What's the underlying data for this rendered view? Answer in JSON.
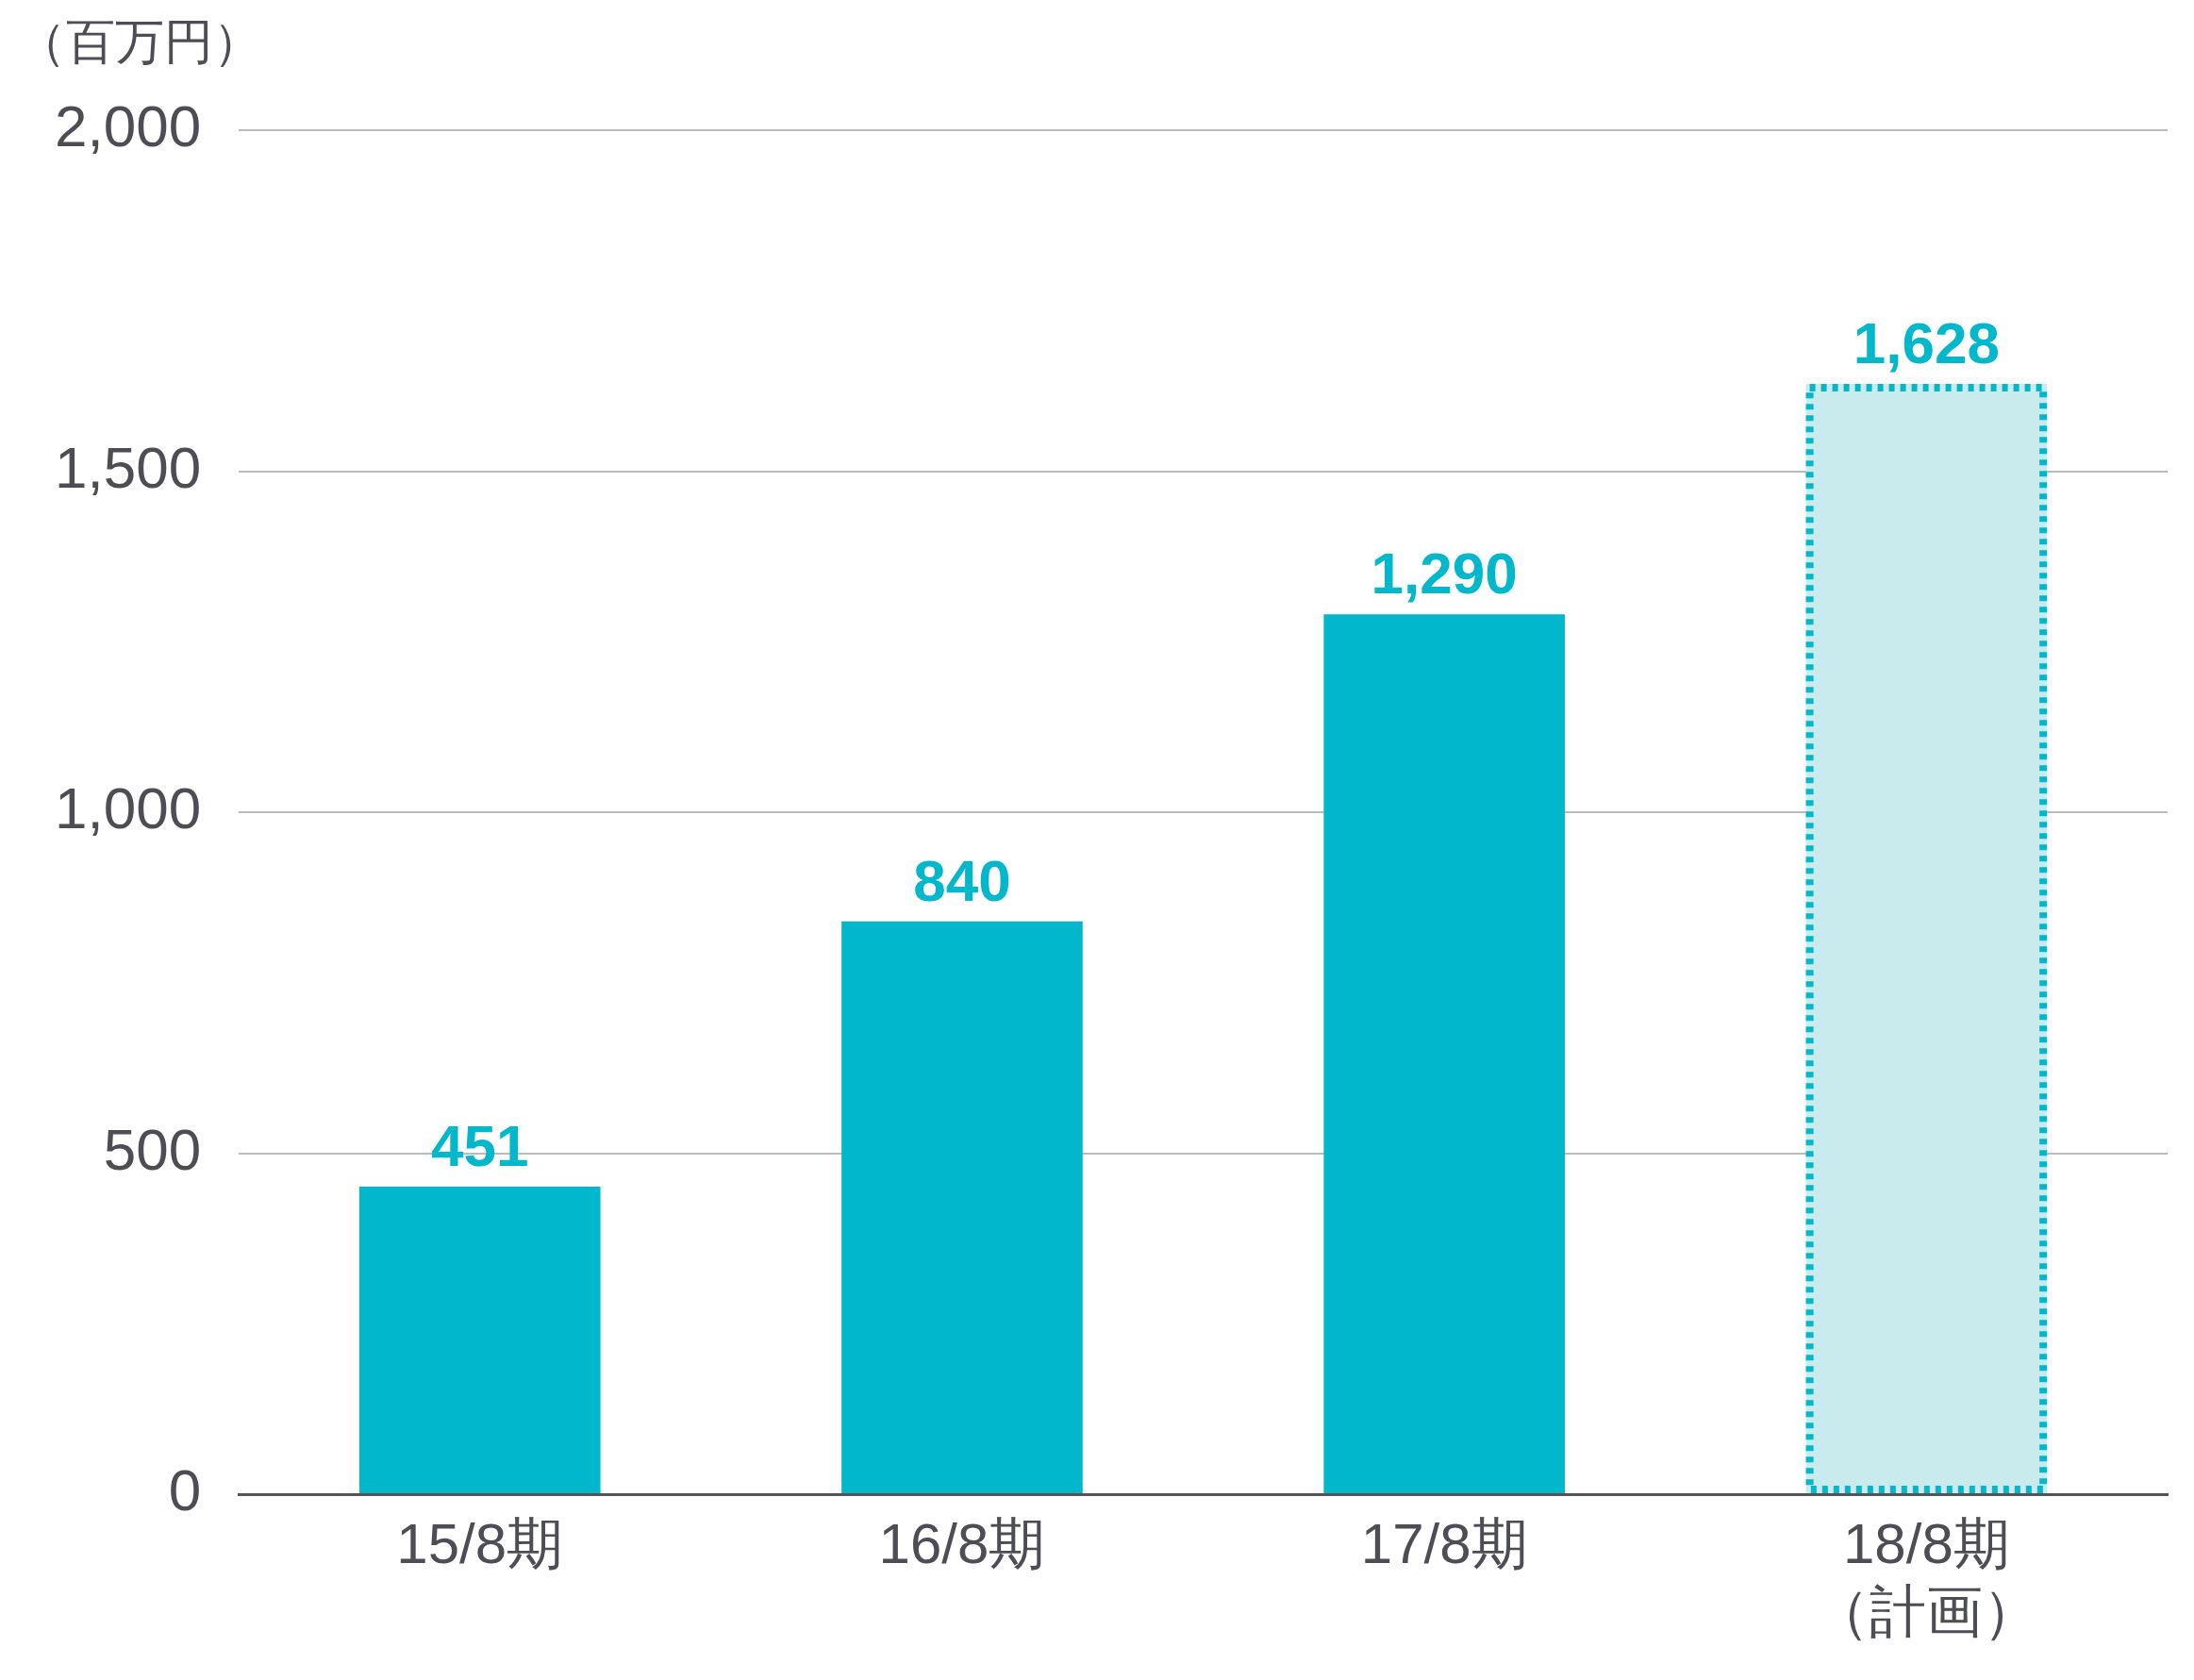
{
  "chart_data": {
    "type": "bar",
    "ylabel": "（百万円）",
    "categories": [
      "15/8期",
      "16/8期",
      "17/8期",
      "18/8期（計画）"
    ],
    "values": [
      451,
      840,
      1290,
      1628
    ],
    "color": "#00b7cb",
    "colors": [
      "#00b7cb",
      "#00b7cb",
      "#00b7cb",
      "#c9ebee"
    ],
    "ylim": [
      0,
      2000
    ],
    "yticks": [
      0,
      500,
      {
        "value": 1000,
        "label": "1,000"
      },
      {
        "value": 1500,
        "label": "1,500"
      },
      {
        "value": 2000,
        "label": "2,000"
      }
    ],
    "value_labels": [
      "451",
      "840",
      "1,290",
      "1,628"
    ],
    "grid": "y",
    "legend": false
  }
}
